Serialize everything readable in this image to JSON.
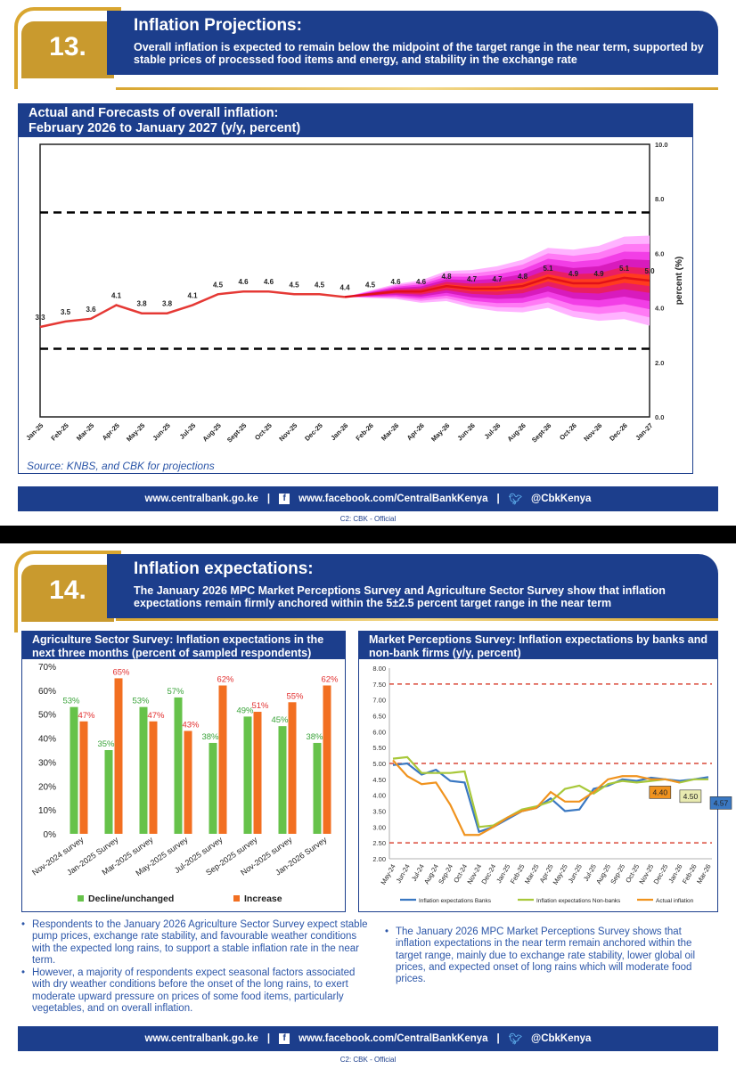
{
  "slide13": {
    "number": "13.",
    "title": "Inflation Projections:",
    "subtitle": "Overall inflation is expected to remain below the midpoint of the target range in the near term, supported by stable prices of processed food items and energy, and stability in the exchange rate",
    "chart_title_line1": "Actual and Forecasts of overall inflation:",
    "chart_title_line2": "February 2026 to January 2027 (y/y, percent)",
    "source": "Source: KNBS, and CBK for projections"
  },
  "slide14": {
    "number": "14.",
    "title": "Inflation expectations:",
    "subtitle": "The January 2026 MPC Market Perceptions Survey and Agriculture Sector Survey show that inflation expectations remain firmly anchored within the 5±2.5 percent target range in the near term",
    "left_title": "Agriculture Sector Survey: Inflation expectations in the next three months (percent of sampled respondents)",
    "right_title": "Market Perceptions Survey: Inflation expectations by banks and non-bank firms (y/y, percent)",
    "left_bullets": [
      "Respondents to the January 2026 Agriculture Sector Survey expect stable pump prices, exchange rate stability, and favourable weather conditions with the expected long rains,  to support a stable inflation rate in the near term.",
      "However, a majority of respondents expect seasonal factors associated with dry weather conditions before the onset of the long rains, to exert moderate upward pressure on prices of some food items, particularly vegetables, and on overall inflation."
    ],
    "right_bullets": [
      "The January 2026 MPC Market Perceptions Survey shows that inflation expectations in the near term remain anchored within the target range, mainly due to exchange rate stability, lower global oil prices,  and expected onset of long rains which will moderate food prices."
    ]
  },
  "footer": {
    "website": "www.centralbank.go.ke",
    "separator": "|",
    "facebook": "www.facebook.com/CentralBankKenya",
    "twitter": "@CbkKenya",
    "classification": "C2: CBK - Official"
  },
  "colors": {
    "navy": "#1c3e8c",
    "gold": "#c99a2e",
    "actual_line": "#e53935",
    "fan_outer": "#ff66ff",
    "bar_green": "#66c24a",
    "bar_orange": "#f26f21",
    "line_banks": "#3a78c2",
    "line_nonbanks": "#a8c83a",
    "line_actual": "#f0931e"
  },
  "chart_data": [
    {
      "type": "line",
      "id": "overall-inflation-fan",
      "categories": [
        "Jan-25",
        "Feb-25",
        "Mar-25",
        "Apr-25",
        "May-25",
        "Jun-25",
        "Jul-25",
        "Aug-25",
        "Sept-25",
        "Oct-25",
        "Nov-25",
        "Dec-25",
        "Jan-26",
        "Feb-26",
        "Mar-26",
        "Apr-26",
        "May-26",
        "Jun-26",
        "Jul-26",
        "Aug-26",
        "Sept-26",
        "Oct-26",
        "Nov-26",
        "Dec-26",
        "Jan-27"
      ],
      "actual": [
        3.3,
        3.5,
        3.6,
        4.1,
        3.8,
        3.8,
        4.1,
        4.5,
        4.6,
        4.6,
        4.5,
        4.5,
        4.4
      ],
      "projection": [
        4.4,
        4.5,
        4.6,
        4.6,
        4.8,
        4.7,
        4.7,
        4.8,
        5.1,
        4.9,
        4.9,
        5.1,
        5.0
      ],
      "labels": [
        "3.3",
        "3.5",
        "3.6",
        "4.1",
        "3.8",
        "3.8",
        "4.1",
        "4.5",
        "4.6",
        "4.6",
        "4.5",
        "4.5",
        "4.4",
        "4.5",
        "4.6",
        "4.6",
        "4.8",
        "4.7",
        "4.7",
        "4.8",
        "5.1",
        "4.9",
        "4.9",
        "5.1",
        "5.0"
      ],
      "upper_band": 7.5,
      "lower_band": 2.5,
      "y_ticks": [
        "0.0",
        "2.0",
        "4.0",
        "6.0",
        "8.0",
        "10.0"
      ],
      "ylabel": "percent (%)",
      "ylim": [
        0,
        10
      ],
      "grid": false
    },
    {
      "type": "bar",
      "id": "agriculture-survey",
      "categories": [
        "Nov-2024 survey",
        "Jan-2025 Survey",
        "Mar-2025 survey",
        "May-2025 survey",
        "Jul-2025 survey",
        "Sep-2025 survey",
        "Nov-2025 survey",
        "Jan-2026 Survey"
      ],
      "series": [
        {
          "name": "Decline/unchanged",
          "values": [
            53,
            35,
            53,
            57,
            38,
            49,
            45,
            38
          ]
        },
        {
          "name": "Increase",
          "values": [
            47,
            65,
            47,
            43,
            62,
            51,
            55,
            62
          ]
        }
      ],
      "y_ticks": [
        "0%",
        "10%",
        "20%",
        "30%",
        "40%",
        "50%",
        "60%",
        "70%"
      ],
      "ylim": [
        0,
        70
      ],
      "legend": "bottom"
    },
    {
      "type": "line",
      "id": "market-perceptions",
      "categories": [
        "May-24",
        "Jun-24",
        "Jul-24",
        "Aug-24",
        "Sep-24",
        "Oct-24",
        "Nov-24",
        "Dec-24",
        "Jan-25",
        "Feb-25",
        "Mar-25",
        "Apr-25",
        "May-25",
        "Jun-25",
        "Jul-25",
        "Aug-25",
        "Sep-25",
        "Oct-25",
        "Nov-25",
        "Dec-25",
        "Jan-26",
        "Feb-26",
        "Mar-26"
      ],
      "series": [
        {
          "name": "Inflation expectations Banks",
          "values": [
            4.95,
            5.0,
            4.65,
            4.8,
            4.45,
            4.4,
            2.85,
            3.0,
            3.25,
            3.5,
            3.6,
            3.9,
            3.5,
            3.55,
            4.2,
            4.3,
            4.5,
            4.45,
            4.55,
            4.5,
            4.45,
            4.5,
            4.57
          ]
        },
        {
          "name": "Inflation expectations Non-banks",
          "values": [
            5.15,
            5.2,
            4.7,
            4.7,
            4.7,
            4.75,
            3.0,
            3.05,
            3.3,
            3.55,
            3.65,
            3.8,
            4.2,
            4.3,
            4.05,
            4.35,
            4.45,
            4.4,
            4.45,
            4.5,
            4.4,
            4.5,
            4.5
          ]
        },
        {
          "name": "Actual inflation",
          "values": [
            5.1,
            4.6,
            4.35,
            4.4,
            3.7,
            2.75,
            2.75,
            3.0,
            3.3,
            3.5,
            3.6,
            4.1,
            3.8,
            3.8,
            4.1,
            4.5,
            4.6,
            4.6,
            4.5,
            4.5,
            4.4,
            null,
            null
          ]
        }
      ],
      "annotations": [
        "4.40",
        "4.50",
        "4.57"
      ],
      "upper_band": 7.5,
      "lower_band": 2.5,
      "y_ticks": [
        "2.00",
        "2.50",
        "3.00",
        "3.50",
        "4.00",
        "4.50",
        "5.00",
        "5.50",
        "6.00",
        "6.50",
        "7.00",
        "7.50",
        "8.00"
      ],
      "ylim": [
        2,
        8
      ],
      "legend": "bottom"
    }
  ]
}
